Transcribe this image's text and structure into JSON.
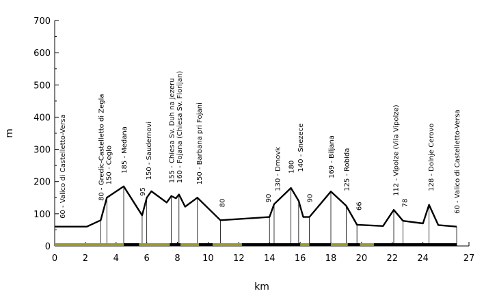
{
  "chart_data": {
    "type": "line",
    "title": "",
    "xlabel": "km",
    "ylabel": "m",
    "xlim": [
      0,
      27
    ],
    "ylim": [
      0,
      700
    ],
    "xticks": [
      0,
      2,
      4,
      6,
      8,
      10,
      12,
      14,
      16,
      18,
      20,
      22,
      24,
      27
    ],
    "yticks": [
      0,
      100,
      200,
      300,
      400,
      500,
      600,
      700
    ],
    "grid": false,
    "series": [
      {
        "x": [
          0,
          2.1,
          3.0,
          3.4,
          4.5,
          5.7,
          6.0,
          6.3,
          7.3,
          7.6,
          7.9,
          8.1,
          8.5,
          9.3,
          10.8,
          14.0,
          14.3,
          15.4,
          15.9,
          16.2,
          16.6,
          18.0,
          19.0,
          19.7,
          21.4,
          22.1,
          22.7,
          24.0,
          24.4,
          25.0,
          26.2
        ],
        "y": [
          60,
          60,
          80,
          150,
          185,
          95,
          150,
          170,
          135,
          155,
          148,
          160,
          122,
          150,
          80,
          90,
          130,
          180,
          140,
          90,
          90,
          169,
          125,
          66,
          62,
          112,
          78,
          70,
          128,
          65,
          60
        ]
      }
    ],
    "point_labels": [
      {
        "x": 0.5,
        "bottom_y": 85,
        "text": "60 - Valico di Castelletto-Versa"
      },
      {
        "x": 3.0,
        "bottom_y": 140,
        "text": "80 - Gredic-Castelletto di Zegla"
      },
      {
        "x": 3.5,
        "bottom_y": 190,
        "text": "150 - Ceglo"
      },
      {
        "x": 4.5,
        "bottom_y": 225,
        "text": "185 - Medana"
      },
      {
        "x": 5.7,
        "bottom_y": 155,
        "text": "95"
      },
      {
        "x": 6.1,
        "bottom_y": 205,
        "text": "150 - Saudernovi"
      },
      {
        "x": 7.6,
        "bottom_y": 195,
        "text": "155 - Chiesa Sv. Duh na jezeru"
      },
      {
        "x": 8.1,
        "bottom_y": 195,
        "text": "160 - Fojana (Chiesa Sv. Florijan)"
      },
      {
        "x": 9.4,
        "bottom_y": 190,
        "text": "150 - Barbana pri Fojani"
      },
      {
        "x": 10.9,
        "bottom_y": 120,
        "text": "80"
      },
      {
        "x": 13.9,
        "bottom_y": 135,
        "text": "90"
      },
      {
        "x": 14.5,
        "bottom_y": 170,
        "text": "130 - Drnovk"
      },
      {
        "x": 15.4,
        "bottom_y": 225,
        "text": "180"
      },
      {
        "x": 16.0,
        "bottom_y": 230,
        "text": "140 - Snezece"
      },
      {
        "x": 16.6,
        "bottom_y": 135,
        "text": "90"
      },
      {
        "x": 18.0,
        "bottom_y": 210,
        "text": "169 - Biljana"
      },
      {
        "x": 19.0,
        "bottom_y": 170,
        "text": "125 - Robida"
      },
      {
        "x": 19.8,
        "bottom_y": 110,
        "text": "66"
      },
      {
        "x": 22.2,
        "bottom_y": 155,
        "text": "112 - Vipolze (Vila Vipolze)"
      },
      {
        "x": 22.8,
        "bottom_y": 120,
        "text": "78"
      },
      {
        "x": 24.5,
        "bottom_y": 170,
        "text": "128 - Dolnje Cerovo"
      },
      {
        "x": 26.2,
        "bottom_y": 100,
        "text": "60 - Valico di Castelletto-Versa"
      }
    ],
    "drop_lines_x": [
      3.0,
      3.4,
      4.5,
      5.7,
      6.0,
      7.6,
      8.1,
      9.3,
      10.8,
      14.0,
      14.3,
      15.4,
      15.9,
      16.6,
      18.0,
      19.0,
      19.7,
      22.1,
      22.7,
      24.4,
      26.2
    ],
    "surface_bar": {
      "colors": {
        "paved": "#000000",
        "gravel": "#9a9a2a"
      },
      "segments": [
        {
          "from": 0,
          "to": 4.5,
          "surface": "gravel"
        },
        {
          "from": 4.5,
          "to": 5.5,
          "surface": "paved"
        },
        {
          "from": 5.5,
          "to": 7.5,
          "surface": "gravel"
        },
        {
          "from": 7.5,
          "to": 8.2,
          "surface": "paved"
        },
        {
          "from": 8.2,
          "to": 9.4,
          "surface": "gravel"
        },
        {
          "from": 9.4,
          "to": 10.3,
          "surface": "paved"
        },
        {
          "from": 10.3,
          "to": 12.2,
          "surface": "gravel"
        },
        {
          "from": 12.2,
          "to": 16.0,
          "surface": "paved"
        },
        {
          "from": 16.0,
          "to": 16.6,
          "surface": "gravel"
        },
        {
          "from": 16.6,
          "to": 18.0,
          "surface": "paved"
        },
        {
          "from": 18.0,
          "to": 19.1,
          "surface": "gravel"
        },
        {
          "from": 19.1,
          "to": 19.9,
          "surface": "paved"
        },
        {
          "from": 19.9,
          "to": 20.8,
          "surface": "gravel"
        },
        {
          "from": 20.8,
          "to": 26.2,
          "surface": "paved"
        }
      ]
    }
  }
}
